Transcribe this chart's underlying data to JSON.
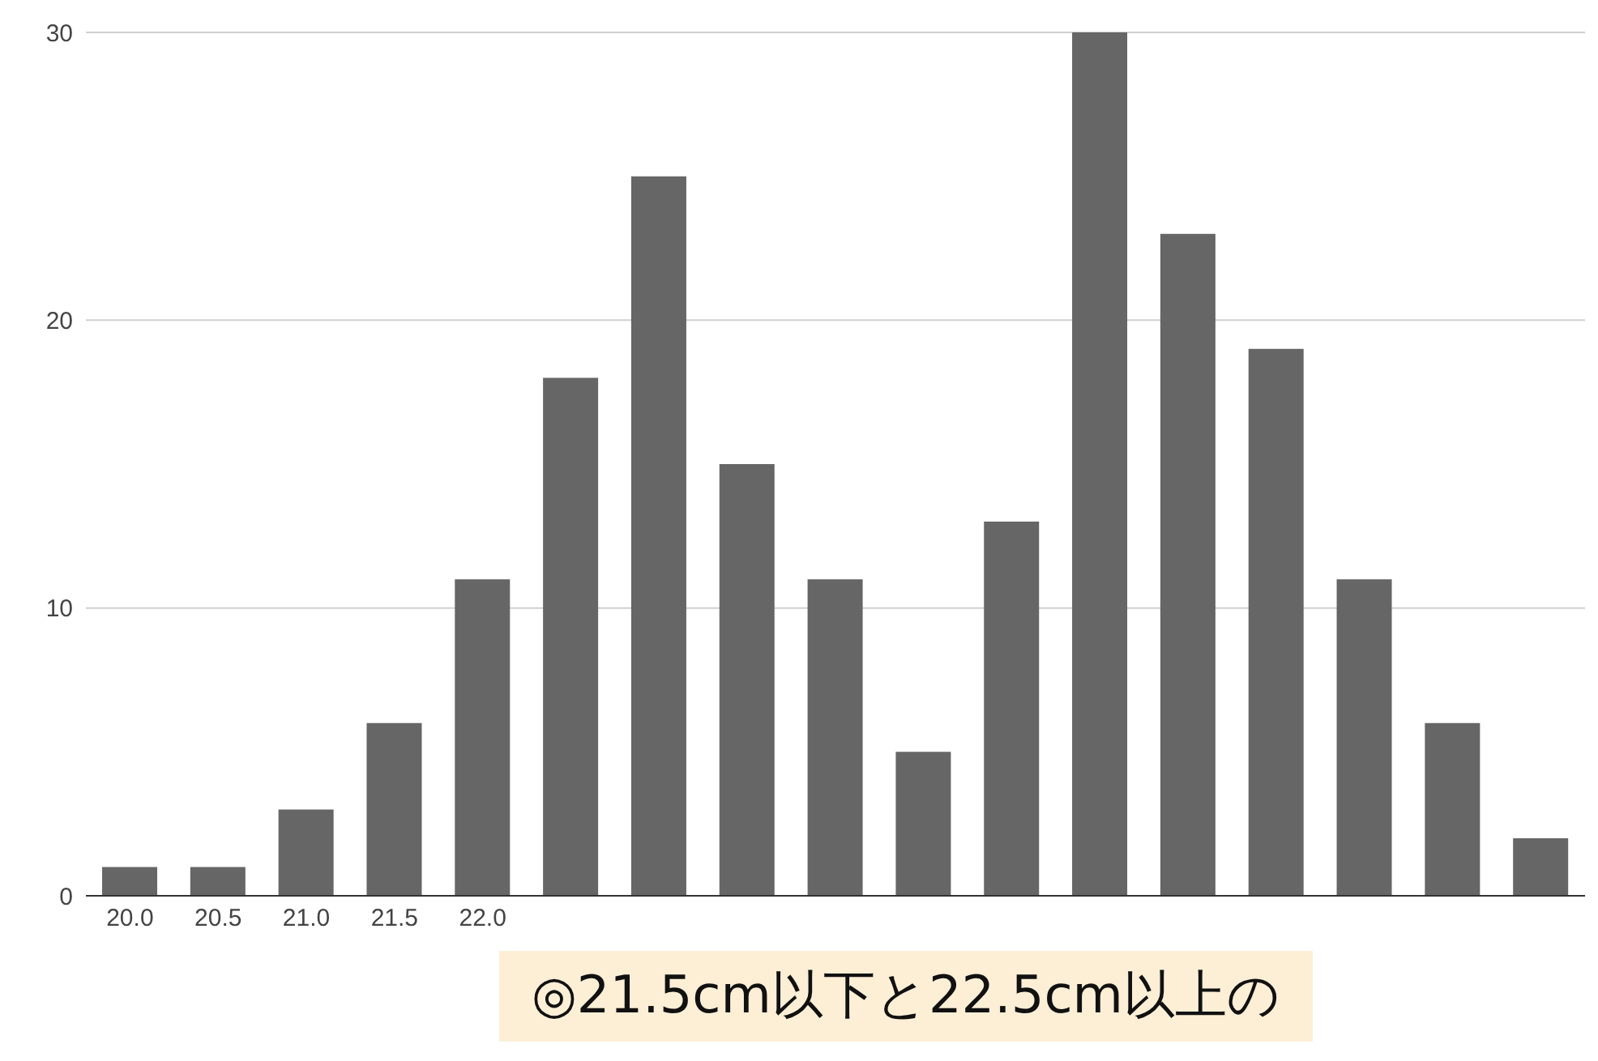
{
  "chart_data": {
    "type": "bar",
    "categories": [
      "20.0",
      "20.5",
      "21.0",
      "21.5",
      "22.0",
      null,
      null,
      null,
      null,
      null,
      null,
      null,
      null,
      null,
      null,
      null,
      null
    ],
    "values": [
      1,
      1,
      3,
      6,
      11,
      18,
      25,
      15,
      11,
      5,
      13,
      30,
      23,
      19,
      11,
      6,
      2
    ],
    "color": "#666666",
    "ylim": [
      0,
      30
    ],
    "yticks": [
      0,
      10,
      20,
      30
    ],
    "grid": "y",
    "annotations": [
      "◎21.5cm以下と22.5cm以上の"
    ]
  }
}
